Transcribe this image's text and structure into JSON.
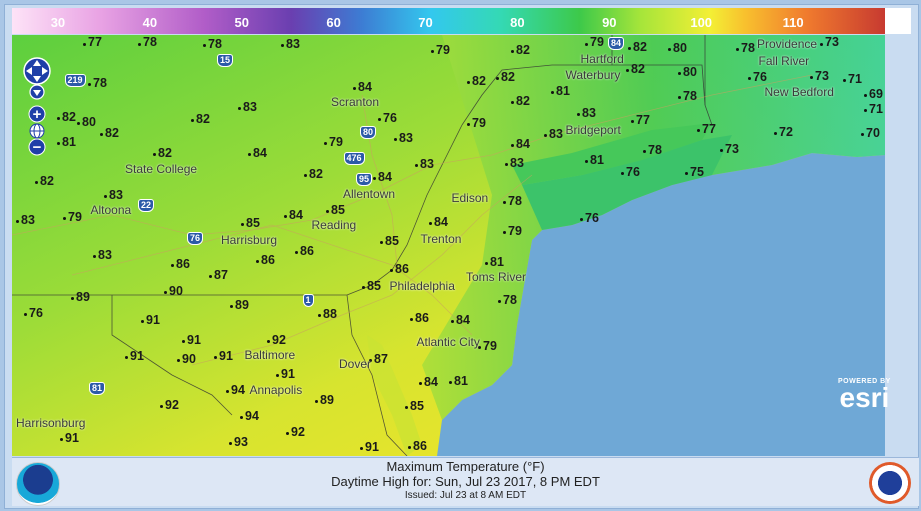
{
  "legend": {
    "ticks": [
      "30",
      "40",
      "50",
      "60",
      "70",
      "80",
      "90",
      "100",
      "110"
    ],
    "unit_range": [
      25,
      120
    ]
  },
  "map": {
    "temperatures": [
      "77",
      "78",
      "78",
      "83",
      "79",
      "82",
      "79",
      "82",
      "80",
      "78",
      "73",
      "78",
      "84",
      "82",
      "82",
      "82",
      "80",
      "76",
      "73",
      "71",
      "69",
      "81",
      "82",
      "78",
      "71",
      "82",
      "80",
      "82",
      "82",
      "83",
      "76",
      "79",
      "83",
      "83",
      "77",
      "77",
      "72",
      "70",
      "81",
      "82",
      "84",
      "79",
      "83",
      "84",
      "83",
      "81",
      "78",
      "73",
      "82",
      "82",
      "83",
      "84",
      "76",
      "75",
      "83",
      "83",
      "79",
      "85",
      "84",
      "85",
      "84",
      "78",
      "76",
      "83",
      "86",
      "87",
      "86",
      "86",
      "85",
      "79",
      "81",
      "86",
      "89",
      "90",
      "85",
      "89",
      "88",
      "78",
      "76",
      "91",
      "86",
      "84",
      "91",
      "92",
      "91",
      "90",
      "91",
      "87",
      "79",
      "94",
      "91",
      "84",
      "81",
      "92",
      "94",
      "89",
      "85",
      "91",
      "93",
      "92",
      "91",
      "86"
    ],
    "places": [
      "Scranton",
      "State College",
      "Altoona",
      "Harrisburg",
      "Reading",
      "Allentown",
      "Edison",
      "Trenton",
      "Philadelphia",
      "Toms River",
      "Atlantic City",
      "Dover",
      "Baltimore",
      "Annapolis",
      "Harrisonburg",
      "Waterbury",
      "Hartford",
      "Bridgeport",
      "Providence",
      "New Bedford",
      "Fall River"
    ],
    "highways": [
      "80",
      "476",
      "76",
      "22",
      "81",
      "15",
      "219",
      "95",
      "84",
      "1"
    ],
    "colors": {
      "ocean": "#6fa8d6",
      "land_cool": "#33c86a",
      "land_mid": "#8fd63a",
      "land_hot": "#e8e82e"
    }
  },
  "controls": {
    "zoom_in": "+",
    "zoom_out": "−",
    "icons": [
      "pan-arrows-icon",
      "globe-icon"
    ]
  },
  "attribution": {
    "powered": "POWERED BY",
    "brand": "esri"
  },
  "footer": {
    "title": "Maximum Temperature (°F)",
    "subtitle": "Daytime High for: Sun, Jul 23 2017,   8 PM EDT",
    "issued": "Issued: Jul 23 at 8 AM EDT",
    "left_logo": "NOAA",
    "right_logo": "National Weather Service"
  }
}
